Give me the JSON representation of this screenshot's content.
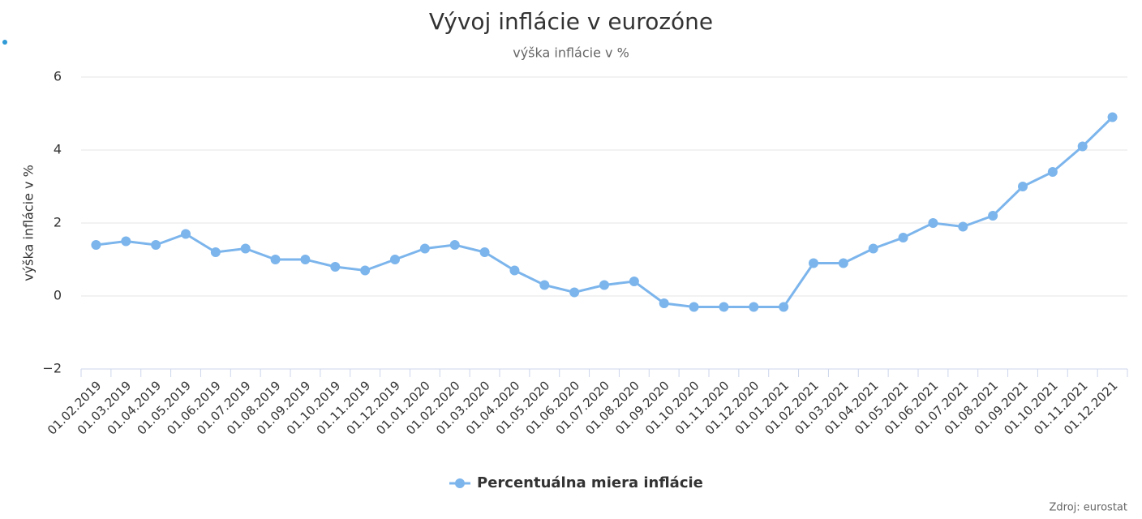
{
  "chart_data": {
    "type": "line",
    "title": "Vývoj inflácie v eurozóne",
    "subtitle": "výška inflácie v %",
    "y_axis_label": "výška inflácie v %",
    "credits": "Zdroj: eurostat",
    "categories": [
      "01.02.2019",
      "01.03.2019",
      "01.04.2019",
      "01.05.2019",
      "01.06.2019",
      "01.07.2019",
      "01.08.2019",
      "01.09.2019",
      "01.10.2019",
      "01.11.2019",
      "01.12.2019",
      "01.01.2020",
      "01.02.2020",
      "01.03.2020",
      "01.04.2020",
      "01.05.2020",
      "01.06.2020",
      "01.07.2020",
      "01.08.2020",
      "01.09.2020",
      "01.10.2020",
      "01.11.2020",
      "01.12.2020",
      "01.01.2021",
      "01.02.2021",
      "01.03.2021",
      "01.04.2021",
      "01.05.2021",
      "01.06.2021",
      "01.07.2021",
      "01.08.2021",
      "01.09.2021",
      "01.10.2021",
      "01.11.2021",
      "01.12.2021"
    ],
    "series": [
      {
        "name": "Percentuálna miera inflácie",
        "color": "#7cb5ec",
        "values": [
          1.4,
          1.5,
          1.4,
          1.7,
          1.2,
          1.3,
          1.0,
          1.0,
          0.8,
          0.7,
          1.0,
          1.3,
          1.4,
          1.2,
          0.7,
          0.3,
          0.1,
          0.3,
          0.4,
          -0.2,
          -0.3,
          -0.3,
          -0.3,
          -0.3,
          0.9,
          0.9,
          1.3,
          1.6,
          2.0,
          1.9,
          2.2,
          3.0,
          3.4,
          4.1,
          4.9
        ]
      }
    ],
    "ylim": [
      -2,
      6
    ],
    "yticks": [
      {
        "value": -2,
        "label": "−2"
      },
      0,
      2,
      4,
      6
    ],
    "grid": true,
    "legend": "bottom"
  }
}
